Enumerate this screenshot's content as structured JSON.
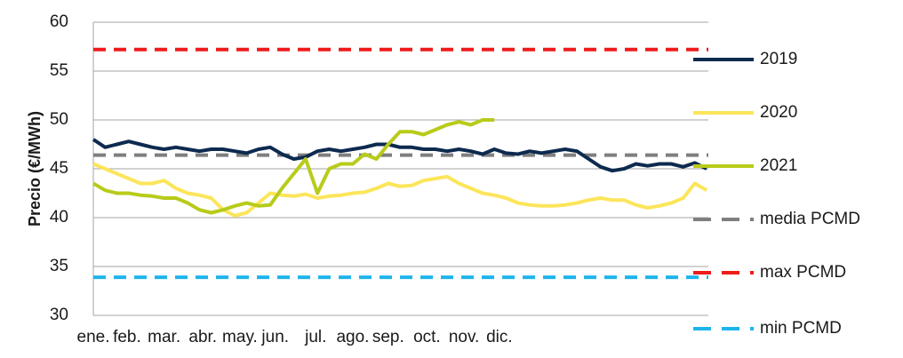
{
  "chart_data": {
    "type": "line",
    "y_label": "Precio (€/MWh)",
    "xlim": [
      0,
      365
    ],
    "xticks": [
      {
        "value": 0,
        "label": "ene."
      },
      {
        "value": 20,
        "label": "feb."
      },
      {
        "value": 42,
        "label": "mar."
      },
      {
        "value": 65,
        "label": "abr."
      },
      {
        "value": 87,
        "label": "may."
      },
      {
        "value": 108,
        "label": "jun."
      },
      {
        "value": 132,
        "label": "jul."
      },
      {
        "value": 154,
        "label": "ago."
      },
      {
        "value": 175,
        "label": "sep."
      },
      {
        "value": 198,
        "label": "oct."
      },
      {
        "value": 220,
        "label": "nov."
      },
      {
        "value": 241,
        "label": "dic."
      }
    ],
    "ylim": [
      30,
      60
    ],
    "yticks": [
      30,
      35,
      40,
      45,
      50,
      55,
      60
    ],
    "grid": true,
    "x": [
      0,
      7,
      14,
      21,
      28,
      35,
      42,
      49,
      56,
      63,
      70,
      77,
      84,
      91,
      98,
      105,
      112,
      119,
      126,
      133,
      140,
      147,
      154,
      161,
      168,
      175,
      182,
      189,
      196,
      203,
      210,
      217,
      224,
      231,
      238,
      245,
      252,
      259,
      266,
      273,
      280,
      287,
      294,
      301,
      308,
      315,
      322,
      329,
      336,
      343,
      350,
      357,
      364
    ],
    "series": [
      {
        "name": "2019",
        "color": "#0d2a4f",
        "values": [
          48,
          47.2,
          47.5,
          47.8,
          47.5,
          47.2,
          47,
          47.2,
          47,
          46.8,
          47,
          47,
          46.8,
          46.6,
          47,
          47.2,
          46.5,
          46,
          46.2,
          46.8,
          47,
          46.8,
          47,
          47.2,
          47.5,
          47.5,
          47.2,
          47.2,
          47,
          47,
          46.8,
          47,
          46.8,
          46.5,
          47,
          46.6,
          46.5,
          46.8,
          46.6,
          46.8,
          47,
          46.8,
          46,
          45.2,
          44.8,
          45,
          45.5,
          45.3,
          45.5,
          45.5,
          45.2,
          45.6,
          45
        ]
      },
      {
        "name": "2020",
        "color": "#fce55a",
        "values": [
          45.5,
          45,
          44.5,
          44,
          43.5,
          43.5,
          43.8,
          43,
          42.5,
          42.3,
          42,
          40.8,
          40.2,
          40.5,
          41.5,
          42.5,
          42.3,
          42.2,
          42.4,
          42,
          42.2,
          42.3,
          42.5,
          42.6,
          43,
          43.5,
          43.2,
          43.3,
          43.8,
          44,
          44.2,
          43.5,
          43,
          42.5,
          42.3,
          42,
          41.5,
          41.3,
          41.2,
          41.2,
          41.3,
          41.5,
          41.8,
          42,
          41.8,
          41.8,
          41.3,
          41,
          41.2,
          41.5,
          42,
          43.5,
          42.8
        ]
      },
      {
        "name": "2021",
        "color": "#b8cb1a",
        "values": [
          43.5,
          42.8,
          42.5,
          42.5,
          42.3,
          42.2,
          42,
          42,
          41.5,
          40.8,
          40.5,
          40.8,
          41.2,
          41.5,
          41.2,
          41.3,
          43,
          44.5,
          46,
          42.5,
          45,
          45.5,
          45.5,
          46.5,
          46,
          47.5,
          48.8,
          48.8,
          48.5,
          49,
          49.5,
          49.8,
          49.5,
          50,
          50,
          null,
          null,
          null,
          null,
          null,
          null,
          null,
          null,
          null,
          null,
          null,
          null,
          null,
          null,
          null,
          null,
          null,
          null
        ]
      }
    ],
    "reference_lines": [
      {
        "name": "media PCMD",
        "value": 46.4,
        "color": "#7f7f7f"
      },
      {
        "name": "max PCMD",
        "value": 57.2,
        "color": "#ee1c1c"
      },
      {
        "name": "min PCMD",
        "value": 33.9,
        "color": "#1eb4ec"
      }
    ],
    "legend": "right"
  }
}
